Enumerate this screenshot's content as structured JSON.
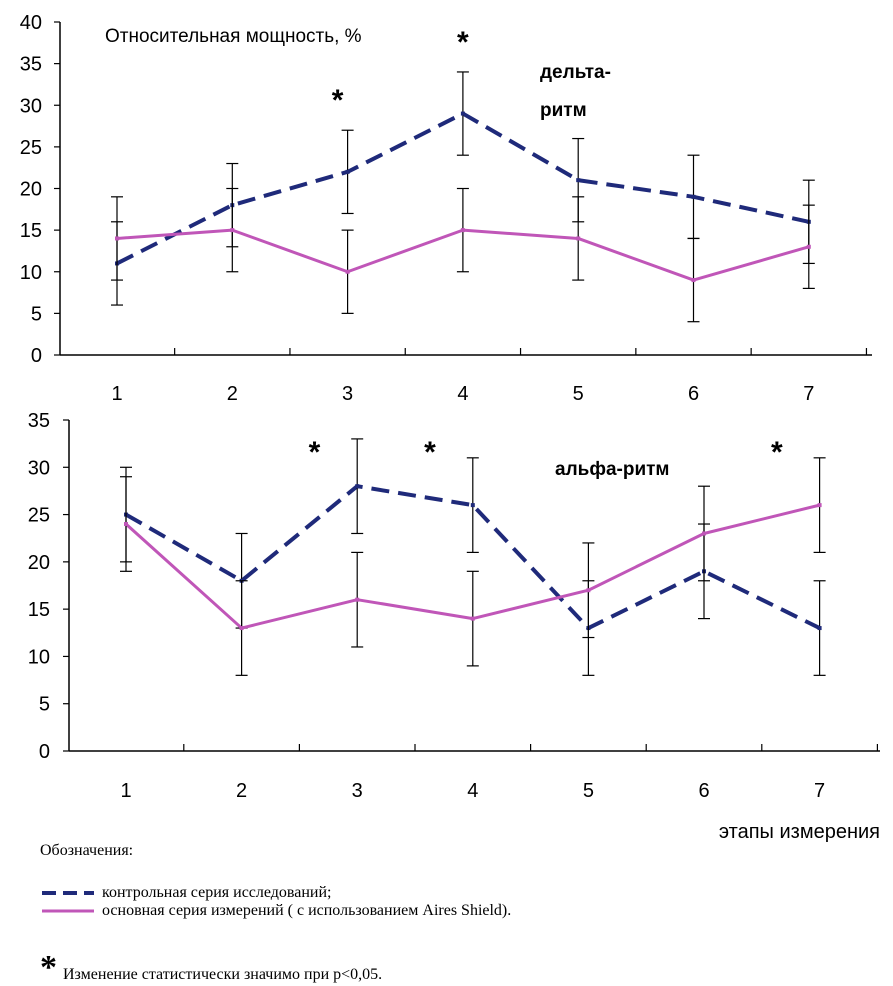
{
  "colors": {
    "control": "#1f2a7a",
    "main": "#c056b8",
    "axis": "#000000"
  },
  "chart_data": [
    {
      "type": "line",
      "title": "Относительная мощность, %",
      "annotation": "дельта-ритм",
      "annotation_lines": [
        "дельта-",
        "ритм"
      ],
      "categories": [
        "1",
        "2",
        "3",
        "4",
        "5",
        "6",
        "7"
      ],
      "ylim": [
        0,
        40
      ],
      "yticks": [
        "0",
        "5",
        "10",
        "15",
        "20",
        "25",
        "30",
        "35",
        "40"
      ],
      "xlabel": "",
      "significance_marker": "*",
      "significant_points": [
        3,
        4
      ],
      "series": [
        {
          "name": "контрольная серия исследований;",
          "style": "dashed",
          "color": "#1f2a7a",
          "values": [
            11,
            18,
            22,
            29,
            21,
            19,
            16
          ],
          "error": [
            5,
            5,
            5,
            5,
            5,
            5,
            5
          ]
        },
        {
          "name": "основная серия измерений ( с использованием Aires Shield).",
          "style": "solid",
          "color": "#c056b8",
          "values": [
            14,
            15,
            10,
            15,
            14,
            9,
            13
          ],
          "error": [
            5,
            5,
            5,
            5,
            5,
            5,
            5
          ]
        }
      ]
    },
    {
      "type": "line",
      "title": "",
      "annotation": "альфа-ритм",
      "categories": [
        "1",
        "2",
        "3",
        "4",
        "5",
        "6",
        "7"
      ],
      "ylim": [
        0,
        35
      ],
      "yticks": [
        "0",
        "5",
        "10",
        "15",
        "20",
        "25",
        "30",
        "35"
      ],
      "xlabel": "этапы измерения",
      "significance_marker": "*",
      "significant_points": [
        3,
        4,
        7
      ],
      "series": [
        {
          "name": "контрольная серия исследований;",
          "style": "dashed",
          "color": "#1f2a7a",
          "values": [
            25,
            18,
            28,
            26,
            13,
            19,
            13
          ],
          "error": [
            5,
            5,
            5,
            5,
            5,
            5,
            5
          ]
        },
        {
          "name": "основная серия измерений ( с использованием Aires Shield).",
          "style": "solid",
          "color": "#c056b8",
          "values": [
            24,
            13,
            16,
            14,
            17,
            23,
            26
          ],
          "error": [
            5,
            5,
            5,
            5,
            5,
            5,
            5
          ]
        }
      ]
    }
  ],
  "legend": {
    "title": "Обозначения:",
    "items": [
      {
        "label": "контрольная серия исследований;",
        "style": "dashed"
      },
      {
        "label": "основная серия измерений ( с использованием Aires Shield).",
        "style": "solid"
      }
    ],
    "significance_symbol": "*",
    "significance_text": "Изменение статистически значимо при p<0,05."
  }
}
